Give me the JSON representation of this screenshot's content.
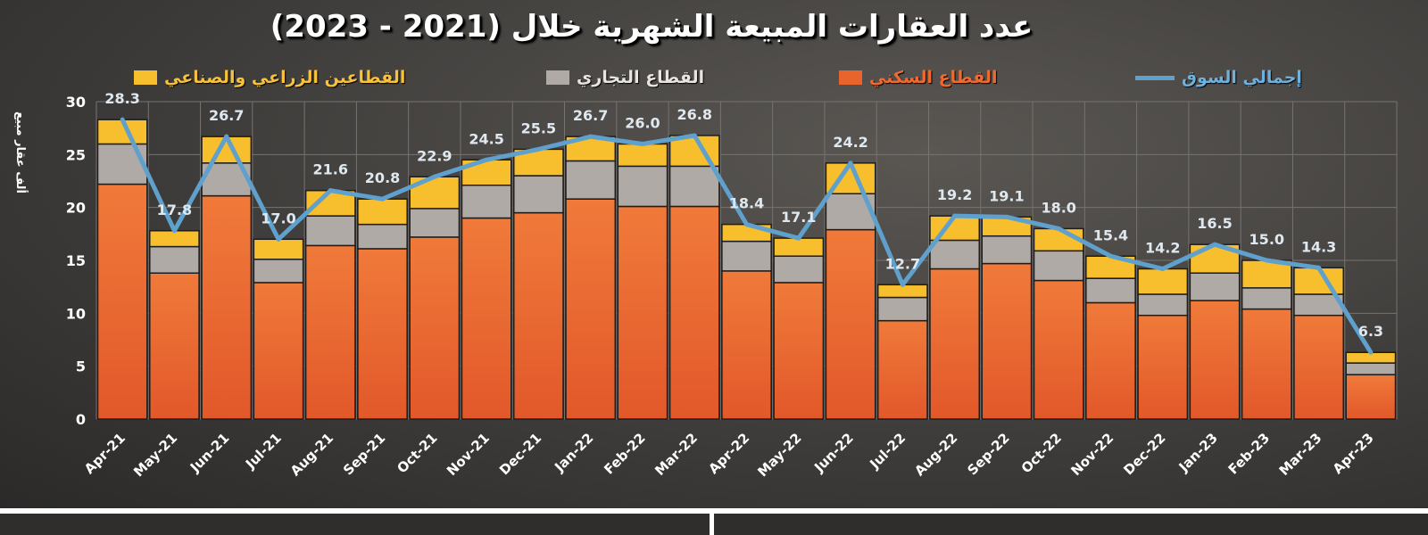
{
  "chart_data": {
    "type": "bar",
    "stacked": true,
    "title": "عدد العقارات المبيعة الشهرية خلال (2021 - 2023)",
    "ylabel": "ألف عقار مبيع",
    "xlabel": "",
    "ylim": [
      0,
      30
    ],
    "yticks": [
      0,
      5,
      10,
      15,
      20,
      25,
      30
    ],
    "grid": true,
    "legend_placement": "top",
    "categories": [
      "Apr-21",
      "May-21",
      "Jun-21",
      "Jul-21",
      "Aug-21",
      "Sep-21",
      "Oct-21",
      "Nov-21",
      "Dec-21",
      "Jan-22",
      "Feb-22",
      "Mar-22",
      "Apr-22",
      "May-22",
      "Jun-22",
      "Jul-22",
      "Aug-22",
      "Sep-22",
      "Oct-22",
      "Nov-22",
      "Dec-22",
      "Jan-23",
      "Feb-23",
      "Mar-23",
      "Apr-23"
    ],
    "series": [
      {
        "name": "القطاع السكني",
        "type": "bar",
        "color": "#e8642c",
        "values": [
          22.2,
          13.8,
          21.1,
          12.9,
          16.4,
          16.1,
          17.2,
          19.0,
          19.5,
          20.8,
          20.1,
          20.1,
          14.0,
          12.9,
          17.9,
          9.3,
          14.2,
          14.7,
          13.1,
          11.0,
          9.8,
          11.2,
          10.4,
          9.8,
          4.2
        ]
      },
      {
        "name": "القطاع التجاري",
        "type": "bar",
        "color": "#b0aaa6",
        "values": [
          3.8,
          2.5,
          3.1,
          2.2,
          2.8,
          2.3,
          2.7,
          3.1,
          3.5,
          3.6,
          3.8,
          3.8,
          2.8,
          2.5,
          3.4,
          2.2,
          2.7,
          2.6,
          2.8,
          2.3,
          2.0,
          2.6,
          2.0,
          2.0,
          1.1
        ]
      },
      {
        "name": "القطاعين الزراعي والصناعي",
        "type": "bar",
        "color": "#f7be2e",
        "values": [
          2.3,
          1.5,
          2.5,
          1.9,
          2.4,
          2.4,
          3.0,
          2.4,
          2.5,
          2.3,
          2.1,
          2.9,
          1.6,
          1.7,
          2.9,
          1.2,
          2.3,
          1.8,
          2.1,
          2.1,
          2.4,
          2.7,
          2.6,
          2.5,
          1.0
        ]
      },
      {
        "name": "إجمالي السوق",
        "type": "line",
        "color": "#5fa0cc",
        "values": [
          28.3,
          17.8,
          26.7,
          17.0,
          21.6,
          20.8,
          22.9,
          24.5,
          25.5,
          26.7,
          26.0,
          26.8,
          18.4,
          17.1,
          24.2,
          12.7,
          19.2,
          19.1,
          18.0,
          15.4,
          14.2,
          16.5,
          15.0,
          14.3,
          6.3
        ],
        "labels": [
          "28.3",
          "17.8",
          "26.7",
          "17.0",
          "21.6",
          "20.8",
          "22.9",
          "24.5",
          "25.5",
          "26.7",
          "26.0",
          "26.8",
          "18.4",
          "17.1",
          "24.2",
          "12.7",
          "19.2",
          "19.1",
          "18.0",
          "15.4",
          "14.2",
          "16.5",
          "15.0",
          "14.3",
          "6.3"
        ]
      }
    ]
  }
}
